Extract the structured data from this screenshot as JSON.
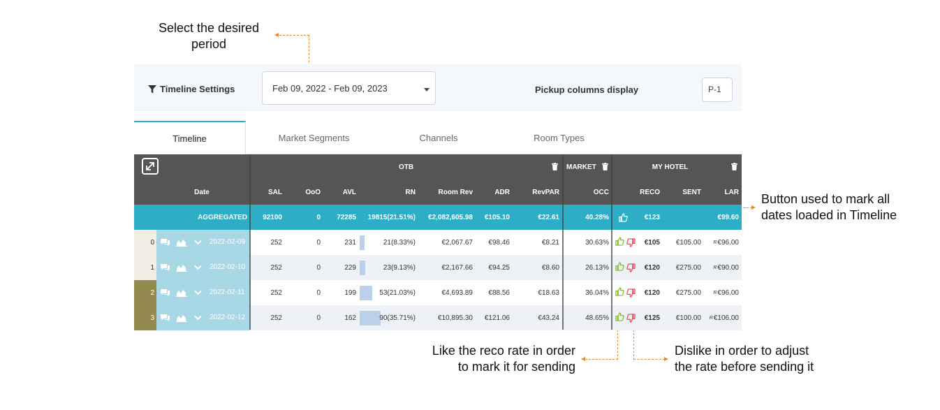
{
  "callouts": {
    "period": [
      "Select the desired",
      "period"
    ],
    "mark_all": [
      "Button used to mark all",
      "dates loaded in Timeline"
    ],
    "like": [
      "Like the reco rate in order",
      "to mark it for sending"
    ],
    "dislike": [
      "Dislike in order to adjust",
      "the rate before sending it"
    ]
  },
  "settings": {
    "title": "Timeline Settings",
    "date_range": "Feb 09, 2022 - Feb 09, 2023",
    "pickup_label": "Pickup columns display",
    "pickup_value": "P-1"
  },
  "tabs": [
    "Timeline",
    "Market Segments",
    "Channels",
    "Room Types"
  ],
  "active_tab": "Timeline",
  "groups": {
    "otb": "OTB",
    "market": "MARKET",
    "my_hotel": "MY HOTEL"
  },
  "columns": {
    "date": "Date",
    "sal": "SAL",
    "ooo": "OoO",
    "avl": "AVL",
    "rn": "RN",
    "room_rev": "Room Rev",
    "adr": "ADR",
    "revpar": "RevPAR",
    "occ": "OCC",
    "reco": "RECO",
    "sent": "SENT",
    "lar": "LAR"
  },
  "aggregated": {
    "label": "AGGREGATED",
    "sal": "92100",
    "ooo": "0",
    "avl": "72285",
    "rn": "19815(21.51%)",
    "room_rev": "€2,082,605.98",
    "adr": "€105.10",
    "revpar": "€22.61",
    "occ": "40.28%",
    "reco": "€123",
    "sent": "",
    "lar": "€99.60"
  },
  "rows": [
    {
      "idx": "0",
      "date": "2022-02-09",
      "sal": "252",
      "ooo": "0",
      "avl": "231",
      "rn": "21(8.33%)",
      "rn_pct": 8.33,
      "room_rev": "€2,067.67",
      "adr": "€98.46",
      "revpar": "€8.21",
      "occ": "30.63%",
      "reco": "€105",
      "sent": "€105.00",
      "lar_flag": "R",
      "lar": "€96.00",
      "idx_color": "#f2efe4"
    },
    {
      "idx": "1",
      "date": "2022-02-10",
      "sal": "252",
      "ooo": "0",
      "avl": "229",
      "rn": "23(9.13%)",
      "rn_pct": 9.13,
      "room_rev": "€2,167.66",
      "adr": "€94.25",
      "revpar": "€8.60",
      "occ": "26.13%",
      "reco": "€120",
      "sent": "€275.00",
      "lar_flag": "R",
      "lar": "€90.00",
      "idx_color": "#f2efe4"
    },
    {
      "idx": "2",
      "date": "2022-02-11",
      "sal": "252",
      "ooo": "0",
      "avl": "199",
      "rn": "53(21.03%)",
      "rn_pct": 21.03,
      "room_rev": "€4,693.89",
      "adr": "€88.56",
      "revpar": "€18.63",
      "occ": "36.04%",
      "reco": "€120",
      "sent": "€275.00",
      "lar_flag": "R",
      "lar": "€96.00",
      "idx_color": "#948a50"
    },
    {
      "idx": "3",
      "date": "2022-02-12",
      "sal": "252",
      "ooo": "0",
      "avl": "162",
      "rn": "90(35.71%)",
      "rn_pct": 35.71,
      "room_rev": "€10,895.30",
      "adr": "€121.06",
      "revpar": "€43.24",
      "occ": "48.65%",
      "reco": "€125",
      "sent": "€100.00",
      "lar_flag": "R",
      "lar": "€106.00",
      "idx_color": "#948a50"
    }
  ],
  "colors": {
    "header": "#555555",
    "aggregated": "#2eaec6",
    "date_cell": "#a8d8e6",
    "like": "#7cbd2a",
    "dislike": "#e8474f",
    "annotation": "#e58a2e"
  },
  "icons": [
    "filter-icon",
    "expand-icon",
    "trash-icon",
    "comment-icon",
    "chart-icon",
    "chevron-down-icon",
    "thumb-up-icon",
    "thumb-down-icon"
  ]
}
